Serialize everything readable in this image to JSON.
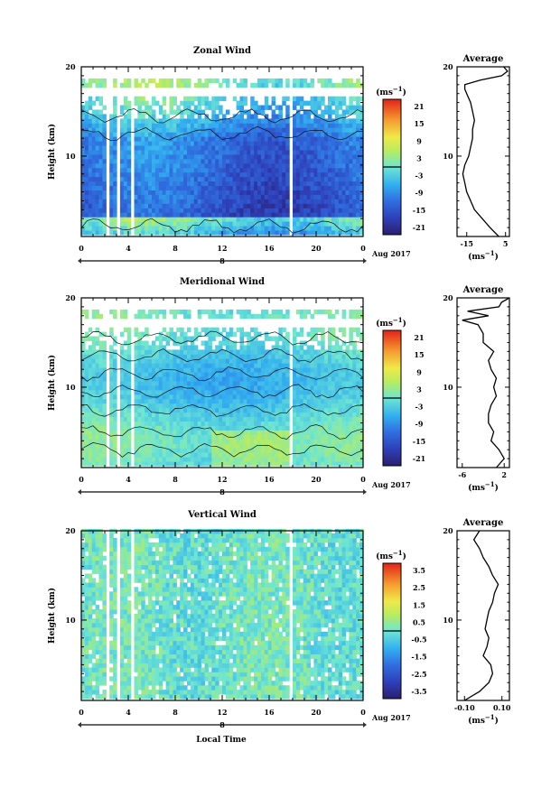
{
  "figure": {
    "xlabel": "Local Time",
    "date_label": "Aug 2017",
    "day_label": "8"
  },
  "chart_data": [
    {
      "type": "heatmap",
      "title": "Zonal Wind",
      "ylabel": "Height (km)",
      "y_ticks": [
        "20",
        "10"
      ],
      "ylim": [
        1,
        20
      ],
      "x_ticks": [
        "0",
        "4",
        "8",
        "12",
        "16",
        "20",
        "0"
      ],
      "xlim": [
        0,
        24
      ],
      "colorbar": {
        "unit": "(ms",
        "unit_sup": "−1",
        "unit_close": ")",
        "labels": [
          "21",
          "15",
          "9",
          "3",
          "-3",
          "-9",
          "-15",
          "-21"
        ],
        "range": [
          -24,
          24
        ]
      },
      "profile": {
        "title": "Average",
        "xlabel": "(ms",
        "xlabel_sup": "−1",
        "xlabel_close": ")",
        "x_ticks": [
          "-15",
          "5"
        ],
        "xlim": [
          -20,
          7
        ],
        "y_ticks": [
          "20",
          "10"
        ],
        "heights": [
          1.0,
          2.0,
          3.0,
          4.0,
          5.0,
          6.0,
          7.0,
          8.0,
          9.0,
          10.0,
          11.0,
          12.0,
          13.0,
          14.0,
          15.0,
          16.0,
          17.0,
          17.5,
          18.0,
          18.5,
          19.0,
          19.5,
          20.0
        ],
        "values": [
          1.5,
          -3,
          -7,
          -11,
          -13,
          -15,
          -16,
          -17,
          -16,
          -14,
          -13,
          -12,
          -12,
          -11,
          -12,
          -13,
          -15,
          -16,
          -16,
          -8,
          3,
          6,
          4
        ]
      }
    },
    {
      "type": "heatmap",
      "title": "Meridional Wind",
      "ylabel": "Height (km)",
      "y_ticks": [
        "20",
        "10"
      ],
      "ylim": [
        1,
        20
      ],
      "x_ticks": [
        "0",
        "4",
        "8",
        "12",
        "16",
        "20",
        "0"
      ],
      "xlim": [
        0,
        24
      ],
      "colorbar": {
        "unit": "(ms",
        "unit_sup": "−1",
        "unit_close": ")",
        "labels": [
          "21",
          "15",
          "9",
          "3",
          "-3",
          "-9",
          "-15",
          "-21"
        ],
        "range": [
          -24,
          24
        ]
      },
      "profile": {
        "title": "Average",
        "xlabel": "(ms",
        "xlabel_sup": "−1",
        "xlabel_close": ")",
        "x_ticks": [
          "-6",
          "2"
        ],
        "xlim": [
          -7,
          3
        ],
        "y_ticks": [
          "20",
          "10"
        ],
        "heights": [
          1.0,
          2.0,
          3.0,
          4.0,
          5.0,
          6.0,
          7.0,
          8.0,
          9.0,
          10.0,
          11.0,
          12.0,
          13.0,
          14.0,
          15.0,
          16.0,
          17.0,
          17.5,
          18.0,
          18.5,
          19.0,
          19.5,
          20.0
        ],
        "values": [
          0.5,
          2.0,
          1.0,
          -0.5,
          0.0,
          -1.0,
          -1.0,
          -0.5,
          0.5,
          0.0,
          0.5,
          -0.5,
          -1.0,
          0.0,
          -2.0,
          -2.0,
          -3.0,
          -6.0,
          -1.0,
          -5.0,
          1.0,
          1.5,
          3.0
        ]
      }
    },
    {
      "type": "heatmap",
      "title": "Vertical Wind",
      "ylabel": "Height (km)",
      "y_ticks": [
        "20",
        "10"
      ],
      "ylim": [
        1,
        20
      ],
      "x_ticks": [
        "0",
        "4",
        "8",
        "12",
        "16",
        "20",
        "0"
      ],
      "xlim": [
        0,
        24
      ],
      "colorbar": {
        "unit": "(ms",
        "unit_sup": "−1",
        "unit_close": ")",
        "labels": [
          "3.5",
          "2.5",
          "1.5",
          "0.5",
          "-0.5",
          "-1.5",
          "-2.5",
          "-3.5"
        ],
        "range": [
          -4,
          4
        ]
      },
      "profile": {
        "title": "Average",
        "xlabel": "(ms",
        "xlabel_sup": "−1",
        "xlabel_close": ")",
        "x_ticks": [
          "-0.10",
          "0.10"
        ],
        "xlim": [
          -0.14,
          0.14
        ],
        "y_ticks": [
          "20",
          "10"
        ],
        "heights": [
          1.0,
          2.0,
          3.0,
          4.0,
          5.0,
          6.0,
          7.0,
          8.0,
          9.0,
          10.0,
          11.0,
          12.0,
          13.0,
          14.0,
          15.0,
          16.0,
          17.0,
          18.0,
          19.0,
          20.0
        ],
        "values": [
          -0.1,
          -0.02,
          0.03,
          0.05,
          0.04,
          0.0,
          0.02,
          0.03,
          0.01,
          0.02,
          0.03,
          0.05,
          0.06,
          0.08,
          0.05,
          0.03,
          0.0,
          -0.02,
          -0.05,
          -0.02
        ]
      }
    }
  ]
}
